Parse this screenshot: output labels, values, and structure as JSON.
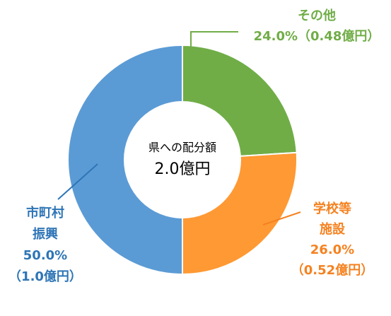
{
  "chart_data": {
    "type": "pie",
    "variant": "donut",
    "center": {
      "line1": "県への配分額",
      "line2": "2.0億円"
    },
    "slices": [
      {
        "name": "その他",
        "label_lines": [
          "その他",
          "24.0%（0.48億円）"
        ],
        "percent": 24.0,
        "amount": 0.48,
        "color": "#70ad47"
      },
      {
        "name": "学校等施設",
        "label_lines": [
          "学校等",
          "施設",
          "26.0%",
          "（0.52億円）"
        ],
        "percent": 26.0,
        "amount": 0.52,
        "color": "#ff9933"
      },
      {
        "name": "市町村振興",
        "label_lines": [
          "市町村",
          "振興",
          "50.0%",
          "（1.0億円）"
        ],
        "percent": 50.0,
        "amount": 1.0,
        "color": "#5b9bd5"
      }
    ],
    "label_colors": {
      "その他": "#70ad47",
      "学校等施設": "#f58220",
      "市町村振興": "#2e75b6"
    },
    "total": 2.0
  }
}
